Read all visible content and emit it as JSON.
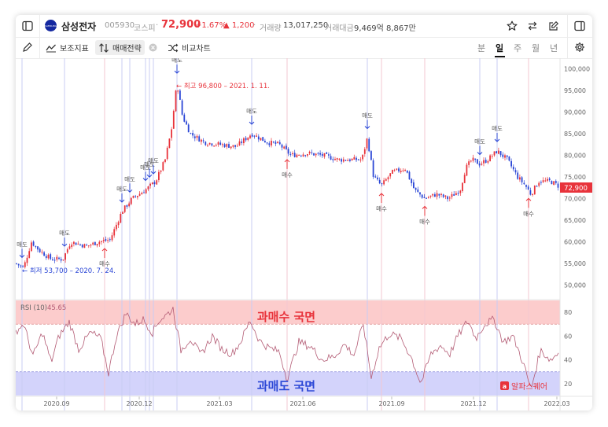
{
  "stock": {
    "name": "삼성전자",
    "code": "005930",
    "market": "코스피",
    "price": "72,900",
    "change_pct": "+1.67%",
    "change_abs": "▲ 1,200",
    "volume_label": "거래량",
    "volume": "13,017,250",
    "amount_label": "거래대금",
    "amount": "9,469억 8,867만",
    "logo_text": "SAMSUNG"
  },
  "toolbar": {
    "indicators_label": "보조지표",
    "strategy_label": "매매전략",
    "compare_label": "비교차트",
    "periods": [
      "분",
      "일",
      "주",
      "월",
      "년"
    ],
    "selected_period": "일"
  },
  "chart": {
    "y_ticks": [
      "100,000",
      "95,000",
      "90,000",
      "85,000",
      "80,000",
      "75,000",
      "70,000",
      "65,000",
      "60,000",
      "55,000",
      "50,000"
    ],
    "current_price_tag": "72,900",
    "x_ticks": [
      "2020.09",
      "2020.12",
      "2021.03",
      "2021.06",
      "2021.09",
      "2021.12",
      "2022.03"
    ],
    "high_annotation": "← 최고 96,800 – 2021. 1. 11.",
    "low_annotation": "← 최저 53,700 – 2020. 7. 24.",
    "sell_label": "매도",
    "buy_label": "매수",
    "rsi_label": "RSI (10)",
    "rsi_value": "45.65",
    "rsi_ticks": [
      "80",
      "60",
      "40",
      "20"
    ],
    "overbought_label": "과매수 국면",
    "oversold_label": "과매도 국면",
    "watermark": "알파스퀘어"
  },
  "colors": {
    "up": "#e8333b",
    "down": "#2b47d6",
    "overbought_zone": "#fccccc",
    "oversold_zone": "#d3d3fb",
    "rsi_line": "#b35b74",
    "signal_sell_line": "#c9ccf3",
    "signal_buy_line": "#f3c7d1",
    "accent": "#1428a0"
  },
  "chart_data": {
    "type": "line",
    "title": "",
    "xlabel": "",
    "ylabel": "",
    "ylim": [
      47000,
      101000
    ],
    "rsi_ylim": [
      10,
      90
    ],
    "x_ticks": [
      "2020.09",
      "2020.12",
      "2021.03",
      "2021.06",
      "2021.09",
      "2021.12",
      "2022.03"
    ],
    "series": [
      {
        "kind": "price",
        "points": [
          [
            0,
            55000
          ],
          [
            10,
            54000
          ],
          [
            20,
            60000
          ],
          [
            30,
            58000
          ],
          [
            45,
            56000
          ],
          [
            60,
            56000
          ],
          [
            70,
            60000
          ],
          [
            90,
            59000
          ],
          [
            105,
            60000
          ],
          [
            120,
            60500
          ],
          [
            135,
            67000
          ],
          [
            148,
            70000
          ],
          [
            165,
            72000
          ],
          [
            178,
            74000
          ],
          [
            190,
            79000
          ],
          [
            198,
            86000
          ],
          [
            205,
            96800
          ],
          [
            212,
            89000
          ],
          [
            222,
            85000
          ],
          [
            240,
            83000
          ],
          [
            260,
            82500
          ],
          [
            280,
            82000
          ],
          [
            300,
            85000
          ],
          [
            320,
            83000
          ],
          [
            335,
            82500
          ],
          [
            350,
            80000
          ],
          [
            370,
            80500
          ],
          [
            390,
            80000
          ],
          [
            410,
            79000
          ],
          [
            425,
            79000
          ],
          [
            440,
            79000
          ],
          [
            447,
            84000
          ],
          [
            455,
            75000
          ],
          [
            465,
            73000
          ],
          [
            478,
            76000
          ],
          [
            495,
            77000
          ],
          [
            507,
            72000
          ],
          [
            520,
            70000
          ],
          [
            535,
            71000
          ],
          [
            550,
            70000
          ],
          [
            565,
            72000
          ],
          [
            572,
            77000
          ],
          [
            580,
            79000
          ],
          [
            590,
            78000
          ],
          [
            600,
            79000
          ],
          [
            612,
            81000
          ],
          [
            625,
            79000
          ],
          [
            638,
            75000
          ],
          [
            648,
            73000
          ],
          [
            655,
            71000
          ],
          [
            665,
            74000
          ],
          [
            680,
            74000
          ],
          [
            690,
            72900
          ]
        ]
      },
      {
        "kind": "rsi",
        "points": [
          [
            0,
            64
          ],
          [
            10,
            70
          ],
          [
            22,
            43
          ],
          [
            34,
            63
          ],
          [
            45,
            38
          ],
          [
            55,
            60
          ],
          [
            68,
            72
          ],
          [
            80,
            49
          ],
          [
            95,
            63
          ],
          [
            108,
            58
          ],
          [
            118,
            29
          ],
          [
            128,
            60
          ],
          [
            140,
            79
          ],
          [
            152,
            70
          ],
          [
            162,
            74
          ],
          [
            174,
            63
          ],
          [
            182,
            73
          ],
          [
            192,
            78
          ],
          [
            200,
            83
          ],
          [
            210,
            48
          ],
          [
            222,
            58
          ],
          [
            235,
            44
          ],
          [
            250,
            60
          ],
          [
            262,
            49
          ],
          [
            275,
            45
          ],
          [
            285,
            54
          ],
          [
            298,
            73
          ],
          [
            310,
            56
          ],
          [
            322,
            50
          ],
          [
            335,
            47
          ],
          [
            345,
            24
          ],
          [
            360,
            55
          ],
          [
            375,
            51
          ],
          [
            390,
            40
          ],
          [
            405,
            43
          ],
          [
            418,
            53
          ],
          [
            430,
            44
          ],
          [
            442,
            70
          ],
          [
            452,
            25
          ],
          [
            462,
            50
          ],
          [
            475,
            62
          ],
          [
            490,
            58
          ],
          [
            503,
            42
          ],
          [
            515,
            20
          ],
          [
            528,
            45
          ],
          [
            540,
            52
          ],
          [
            552,
            45
          ],
          [
            562,
            60
          ],
          [
            575,
            73
          ],
          [
            585,
            58
          ],
          [
            596,
            70
          ],
          [
            608,
            74
          ],
          [
            620,
            55
          ],
          [
            632,
            60
          ],
          [
            645,
            38
          ],
          [
            655,
            15
          ],
          [
            667,
            48
          ],
          [
            680,
            40
          ],
          [
            690,
            46
          ]
        ]
      }
    ],
    "signals": {
      "sell_x": [
        8,
        62,
        135,
        145,
        165,
        170,
        175,
        205,
        300,
        447,
        590,
        612
      ],
      "buy_x": [
        113,
        345,
        465,
        520,
        652
      ]
    }
  }
}
